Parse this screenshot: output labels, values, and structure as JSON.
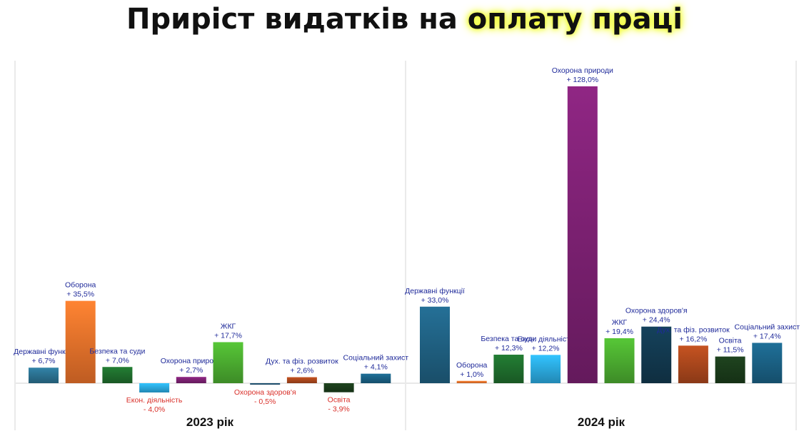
{
  "title": {
    "text_main": "Приріст видатків на",
    "text_highlight": "оплату праці"
  },
  "colors": {
    "title_highlight": "#f2ff3a",
    "positive_label": "#1f2a9a",
    "negative_label": "#d9302a"
  },
  "chart_data": [
    {
      "type": "bar",
      "title": "2023 рік",
      "categories": [
        "Державні функції",
        "Оборона",
        "Безпека та суди",
        "Екон. діяльність",
        "Охорона природи",
        "ЖКГ",
        "Охорона здоров'я",
        "Дух. та фіз. розвиток",
        "Освіта",
        "Соціальний захист"
      ],
      "display_labels": [
        "Державні функції",
        "Оборона",
        "Безпека та суди",
        "Екон. діяльність",
        "Охорона природи",
        "ЖКГ",
        "Охорона здоров'я",
        "Дух. та фіз. розвиток",
        "Освіта",
        "Соціальний захист"
      ],
      "values": [
        6.7,
        35.5,
        7.0,
        -4.0,
        2.7,
        17.7,
        -0.5,
        2.6,
        -3.9,
        4.1
      ],
      "value_labels": [
        "+ 6,7%",
        "+ 35,5%",
        "+ 7,0%",
        "- 4,0%",
        "+ 2,7%",
        "+ 17,7%",
        "- 0,5%",
        "+ 2,6%",
        "- 3,9%",
        "+ 4,1%"
      ],
      "colors": [
        "#2a6f8e",
        "#e8702a",
        "#1e6b2c",
        "#2aa6dc",
        "#7a2070",
        "#4aa92f",
        "#1d4d6b",
        "#a8461c",
        "#1a3a1a",
        "#1a5f82"
      ],
      "grid": false
    },
    {
      "type": "bar",
      "title": "2024 рік",
      "categories": [
        "Державні функції",
        "Оборона",
        "Безпека та суди",
        "Екон. діяльність",
        "Охорона природи",
        "ЖКГ",
        "Охорона здоров'я",
        "Дух. та фіз. розвиток",
        "Освіта",
        "Соціальний захист"
      ],
      "display_labels": [
        "Державні функції",
        "Оборона",
        "Безпека та суди",
        "Екон. діяльність",
        "Охорона природи",
        "ЖКГ",
        "Охорона здоров'я",
        "Дух. та фіз. розвиток",
        "Освіта",
        "Соціальний захист"
      ],
      "values": [
        33.0,
        1.0,
        12.3,
        12.2,
        128.0,
        19.4,
        24.4,
        16.2,
        11.5,
        17.4
      ],
      "value_labels": [
        "+ 33,0%",
        "+ 1,0%",
        "+ 12,3%",
        "+ 12,2%",
        "+ 128,0%",
        "+ 19,4%",
        "+ 24,4%",
        "+ 16,2%",
        "+ 11,5%",
        "+ 17,4%"
      ],
      "colors": [
        "#1f5f80",
        "#e8702a",
        "#1e6b2c",
        "#2aa6dc",
        "#7a2070",
        "#4aa92f",
        "#12384e",
        "#a8461c",
        "#1a3a1a",
        "#1a5f82"
      ],
      "grid": false
    }
  ]
}
